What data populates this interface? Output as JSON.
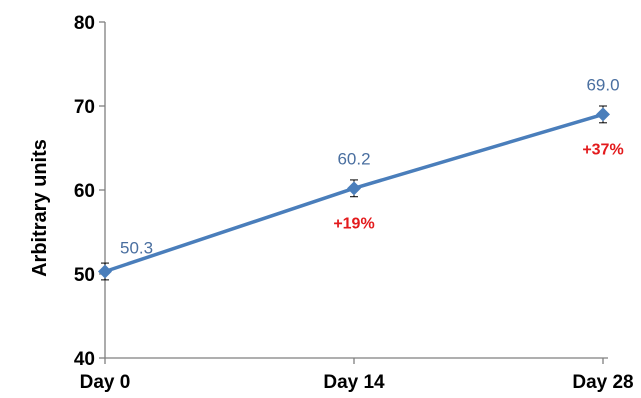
{
  "chart_data": {
    "type": "line",
    "categories": [
      "Day 0",
      "Day 14",
      "Day 28"
    ],
    "series": [
      {
        "values": [
          50.3,
          60.2,
          69.0
        ],
        "error": [
          1.0,
          1.0,
          1.0
        ],
        "data_labels": [
          "50.3",
          "60.2",
          "69.0"
        ],
        "color": "#4a7ebb"
      }
    ],
    "annotations": [
      {
        "category": "Day 14",
        "text": "+19%",
        "color": "#e31a1c"
      },
      {
        "category": "Day 28",
        "text": "+37%",
        "color": "#e31a1c"
      }
    ],
    "ylabel": "Arbitrary units",
    "xlabel": "",
    "ylim": [
      40,
      80
    ],
    "yticks": [
      "40",
      "50",
      "60",
      "70",
      "80"
    ],
    "grid": false,
    "legend": "none"
  }
}
